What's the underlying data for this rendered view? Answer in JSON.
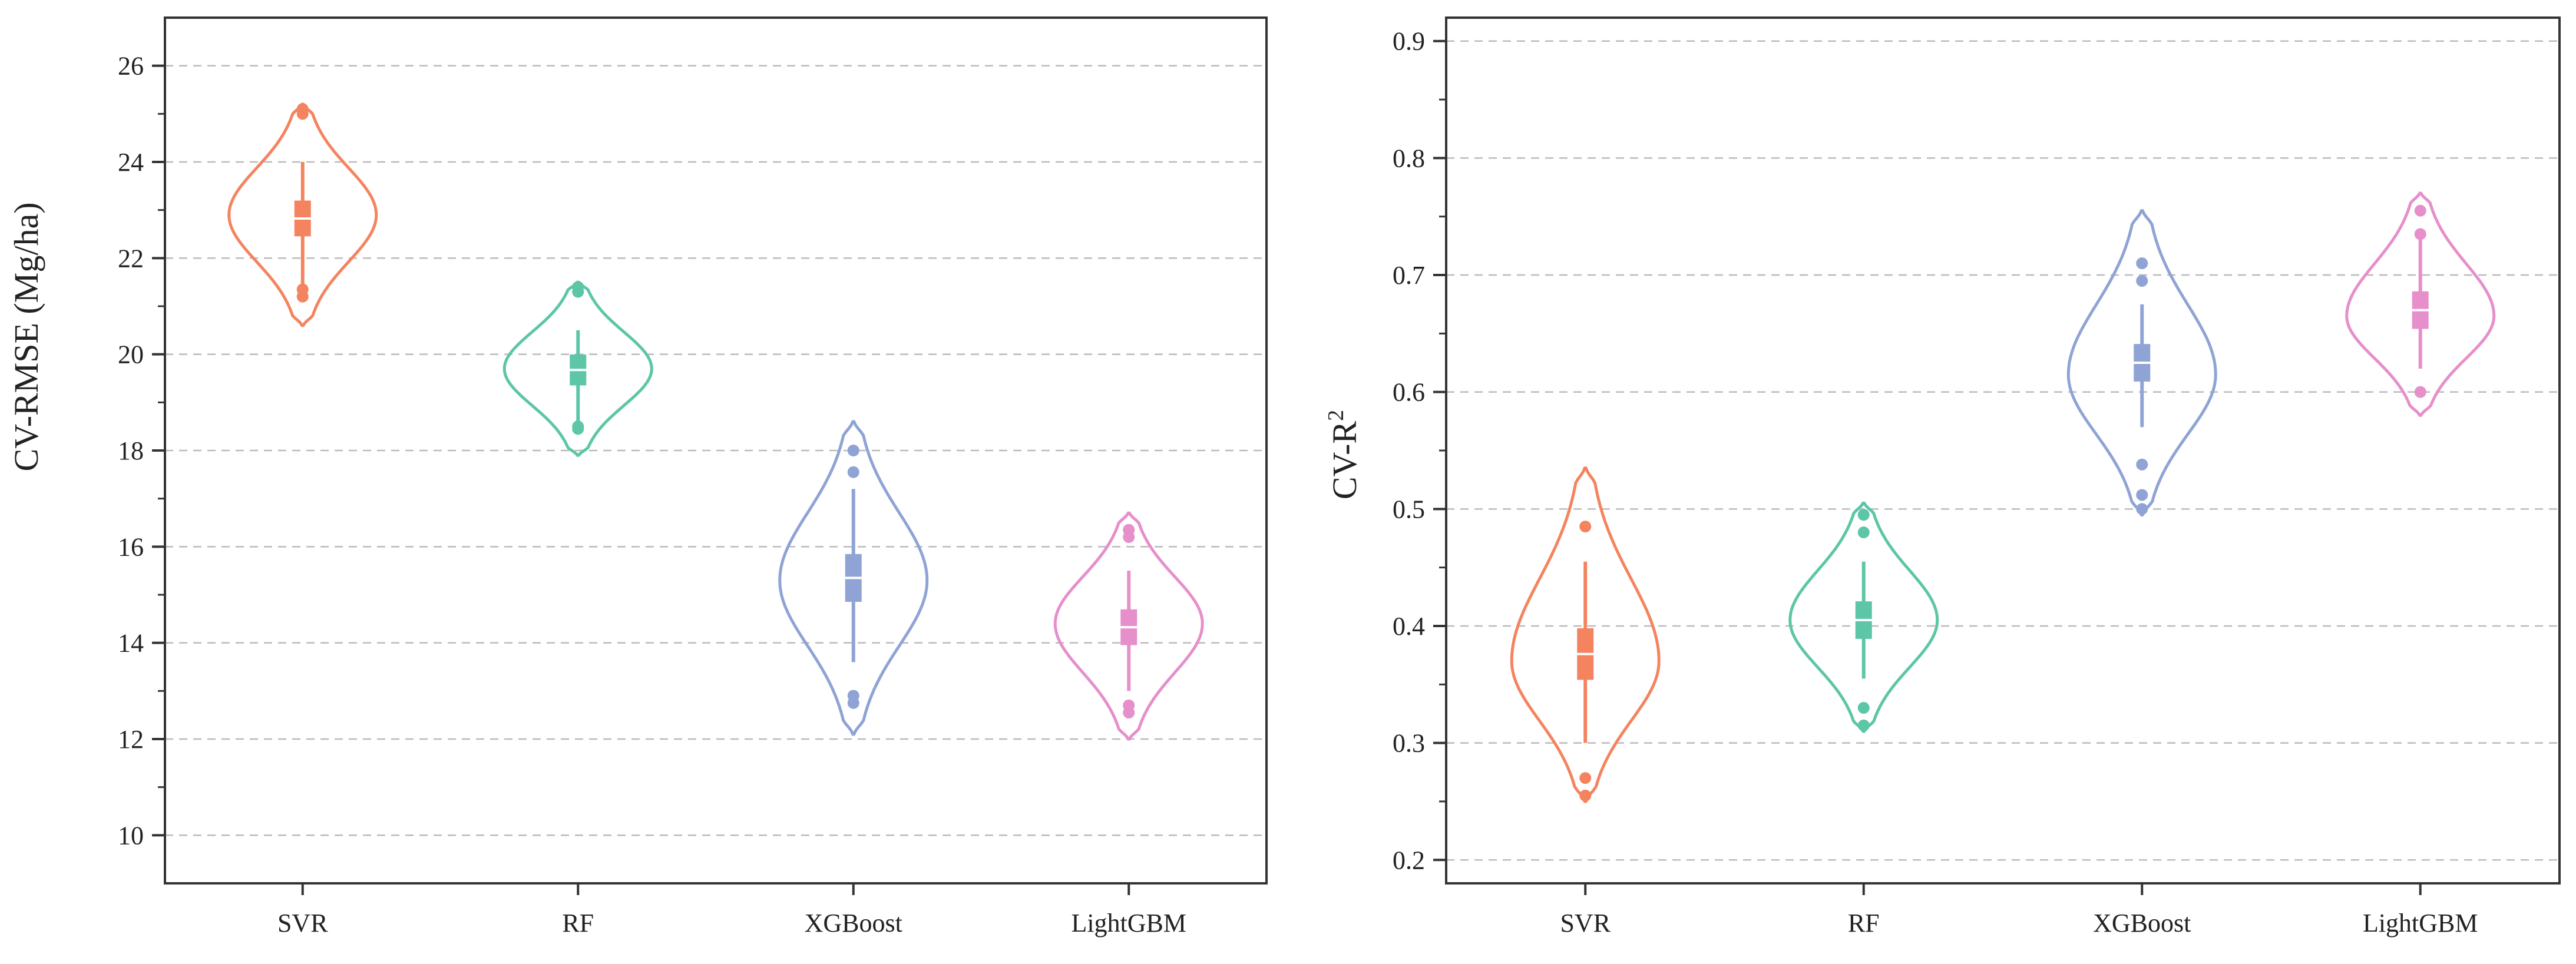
{
  "chart_data": [
    {
      "type": "violin",
      "ylabel": "CV-RMSE (Mg/ha)",
      "ylim": [
        9,
        27
      ],
      "yticks": [
        10,
        12,
        14,
        16,
        18,
        20,
        22,
        24,
        26
      ],
      "ytick_labels": [
        "10",
        "12",
        "14",
        "16",
        "18",
        "20",
        "22",
        "24",
        "26"
      ],
      "grid": true,
      "categories": [
        "SVR",
        "RF",
        "XGBoost",
        "LightGBM"
      ],
      "series": [
        {
          "name": "SVR",
          "color": "#F4845F",
          "violin_min": 20.6,
          "violin_max": 25.2,
          "violin_peak": 22.9,
          "whisker_low": 21.2,
          "whisker_high": 24.0,
          "box_low": 22.6,
          "box_high": 23.05,
          "outliers": [
            21.2,
            21.35,
            25.0,
            25.1
          ]
        },
        {
          "name": "RF",
          "color": "#5CC6A7",
          "violin_min": 17.9,
          "violin_max": 21.5,
          "violin_peak": 19.7,
          "whisker_low": 18.45,
          "whisker_high": 20.5,
          "box_low": 19.5,
          "box_high": 19.85,
          "outliers": [
            18.45,
            18.5,
            21.3,
            21.4
          ]
        },
        {
          "name": "XGBoost",
          "color": "#8FA3D4",
          "violin_min": 12.1,
          "violin_max": 18.6,
          "violin_peak": 15.3,
          "whisker_low": 13.6,
          "whisker_high": 17.2,
          "box_low": 15.0,
          "box_high": 15.7,
          "outliers": [
            12.75,
            12.9,
            17.55,
            18.0
          ]
        },
        {
          "name": "LightGBM",
          "color": "#E68FCB",
          "violin_min": 12.0,
          "violin_max": 16.7,
          "violin_peak": 14.4,
          "whisker_low": 13.0,
          "whisker_high": 15.5,
          "box_low": 14.1,
          "box_high": 14.55,
          "outliers": [
            12.55,
            12.7,
            16.2,
            16.35
          ]
        }
      ]
    },
    {
      "type": "violin",
      "ylabel_main": "CV-R",
      "ylabel_sup": "2",
      "ylim": [
        0.18,
        0.92
      ],
      "yticks": [
        0.2,
        0.3,
        0.4,
        0.5,
        0.6,
        0.7,
        0.8,
        0.9
      ],
      "ytick_labels": [
        "0.2",
        "0.3",
        "0.4",
        "0.5",
        "0.6",
        "0.7",
        "0.8",
        "0.9"
      ],
      "grid": true,
      "categories": [
        "SVR",
        "RF",
        "XGBoost",
        "LightGBM"
      ],
      "series": [
        {
          "name": "SVR",
          "color": "#F4845F",
          "violin_min": 0.25,
          "violin_max": 0.535,
          "violin_peak": 0.37,
          "whisker_low": 0.3,
          "whisker_high": 0.455,
          "box_low": 0.36,
          "box_high": 0.392,
          "outliers": [
            0.255,
            0.27,
            0.485
          ]
        },
        {
          "name": "RF",
          "color": "#5CC6A7",
          "violin_min": 0.31,
          "violin_max": 0.505,
          "violin_peak": 0.405,
          "whisker_low": 0.355,
          "whisker_high": 0.455,
          "box_low": 0.395,
          "box_high": 0.415,
          "outliers": [
            0.315,
            0.33,
            0.48,
            0.495
          ]
        },
        {
          "name": "XGBoost",
          "color": "#8FA3D4",
          "violin_min": 0.495,
          "violin_max": 0.755,
          "violin_peak": 0.615,
          "whisker_low": 0.57,
          "whisker_high": 0.675,
          "box_low": 0.615,
          "box_high": 0.635,
          "outliers": [
            0.5,
            0.512,
            0.538,
            0.695,
            0.71
          ]
        },
        {
          "name": "LightGBM",
          "color": "#E68FCB",
          "violin_min": 0.58,
          "violin_max": 0.77,
          "violin_peak": 0.665,
          "whisker_low": 0.62,
          "whisker_high": 0.73,
          "box_low": 0.66,
          "box_high": 0.68,
          "outliers": [
            0.6,
            0.735,
            0.755
          ]
        }
      ]
    }
  ]
}
